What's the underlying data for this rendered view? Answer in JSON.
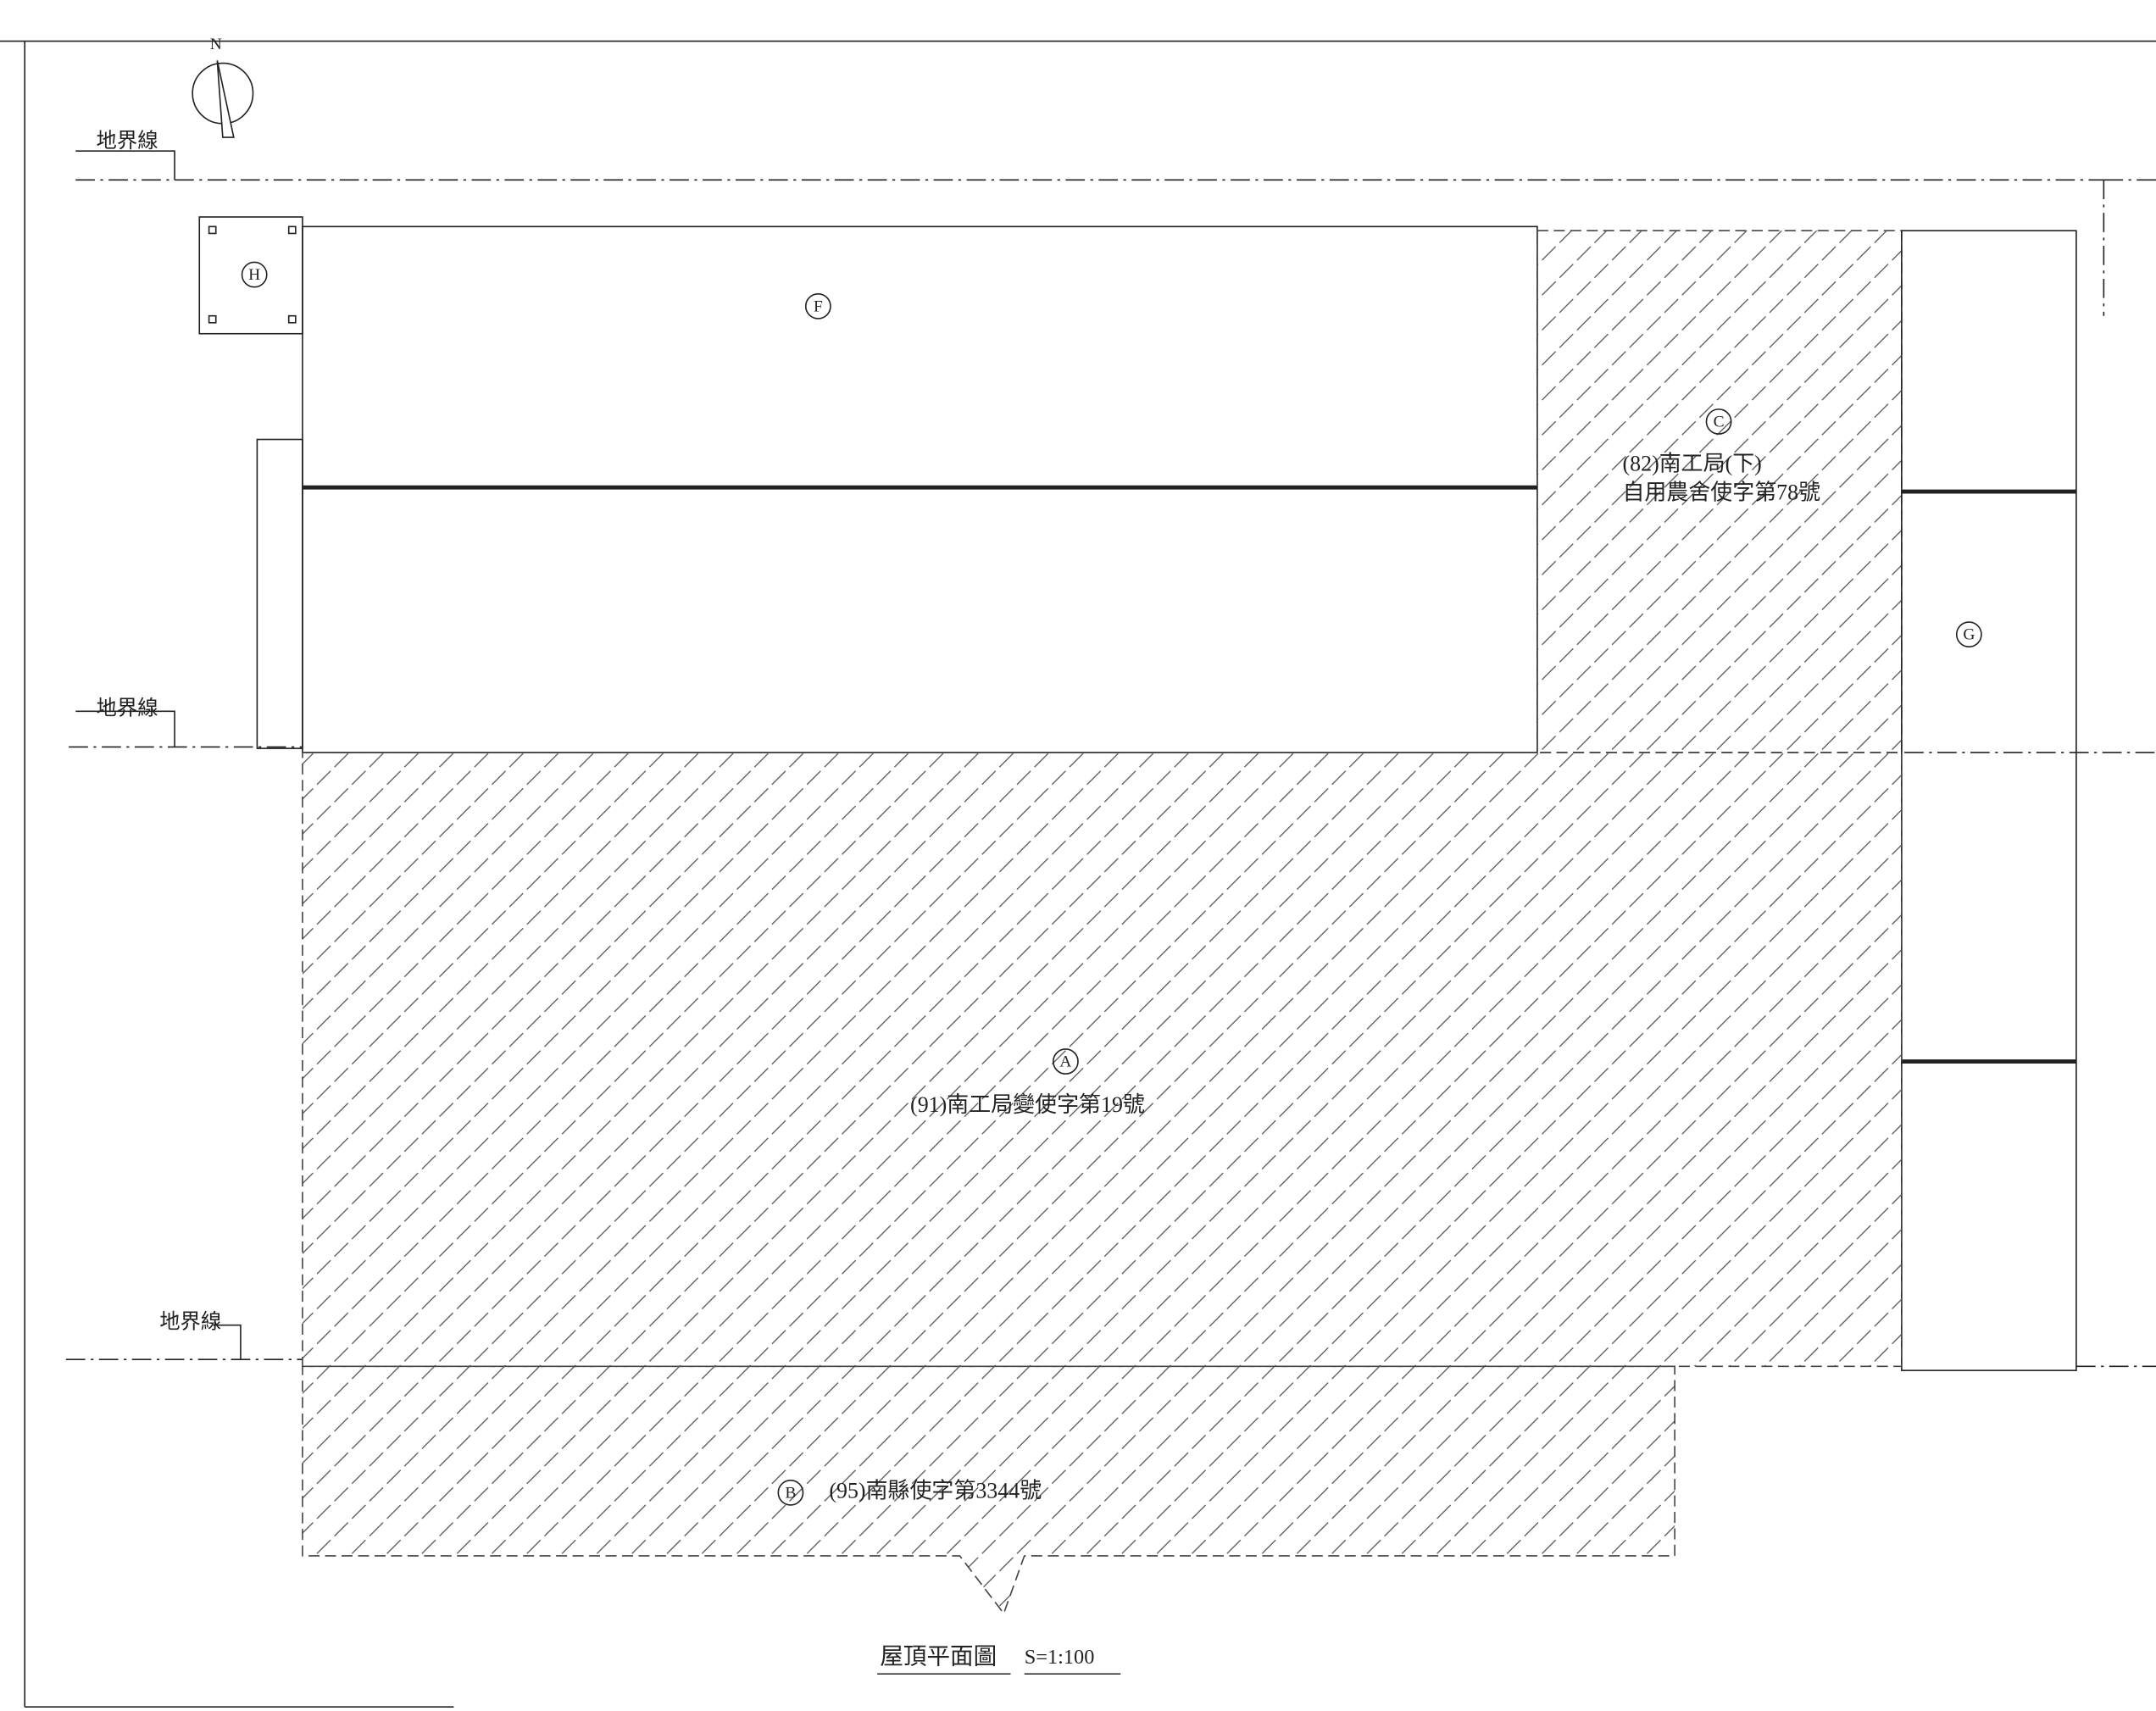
{
  "north": "N",
  "boundary_labels": [
    "地界線",
    "地界線",
    "地界線"
  ],
  "regions": [
    {
      "id": "A",
      "notes": [
        "(91)南工局變使字第19號"
      ]
    },
    {
      "id": "B",
      "notes": [
        "(95)南縣使字第3344號"
      ]
    },
    {
      "id": "C",
      "notes": [
        "(82)南工局(下)",
        "自用農舍使字第78號"
      ]
    },
    {
      "id": "F"
    },
    {
      "id": "G"
    },
    {
      "id": "H"
    }
  ],
  "title": {
    "name": "屋頂平面圖",
    "scale": "S=1:100"
  }
}
